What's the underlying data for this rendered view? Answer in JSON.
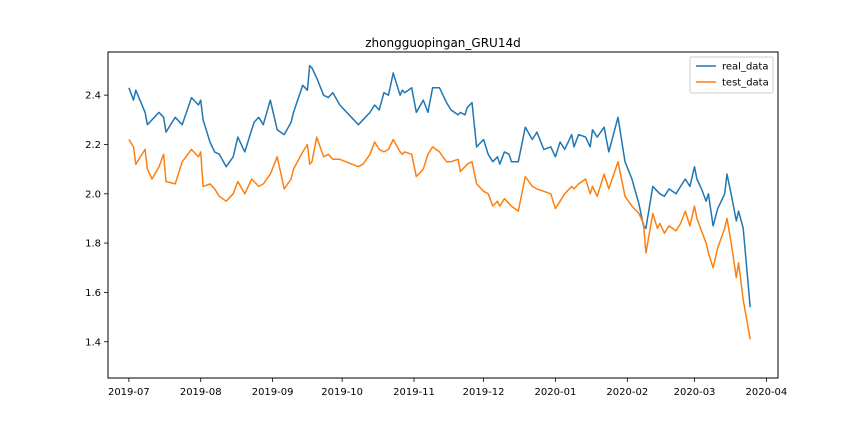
{
  "chart_data": {
    "type": "line",
    "title": "zhongguopingan_GRU14d",
    "xlabel": "",
    "ylabel": "",
    "xlim": [
      "2019-06-22",
      "2020-04-06"
    ],
    "ylim": [
      1.253,
      2.575
    ],
    "x_ticks": [
      "2019-07",
      "2019-08",
      "2019-09",
      "2019-10",
      "2019-11",
      "2019-12",
      "2020-01",
      "2020-02",
      "2020-03",
      "2020-04"
    ],
    "y_ticks": [
      "1.4",
      "1.6",
      "1.8",
      "2.0",
      "2.2",
      "2.4"
    ],
    "grid": false,
    "legend_position": "top-right",
    "series": [
      {
        "name": "real_data",
        "color": "#1f77b4",
        "x": [
          "2019-07-01",
          "2019-07-03",
          "2019-07-04",
          "2019-07-08",
          "2019-07-09",
          "2019-07-11",
          "2019-07-14",
          "2019-07-16",
          "2019-07-17",
          "2019-07-21",
          "2019-07-24",
          "2019-07-28",
          "2019-07-31",
          "2019-08-01",
          "2019-08-02",
          "2019-08-05",
          "2019-08-07",
          "2019-08-09",
          "2019-08-12",
          "2019-08-15",
          "2019-08-17",
          "2019-08-20",
          "2019-08-23",
          "2019-08-24",
          "2019-08-26",
          "2019-08-28",
          "2019-08-31",
          "2019-09-03",
          "2019-09-06",
          "2019-09-09",
          "2019-09-10",
          "2019-09-14",
          "2019-09-16",
          "2019-09-17",
          "2019-09-18",
          "2019-09-20",
          "2019-09-23",
          "2019-09-25",
          "2019-09-27",
          "2019-09-30",
          "2019-10-08",
          "2019-10-10",
          "2019-10-13",
          "2019-10-15",
          "2019-10-17",
          "2019-10-19",
          "2019-10-21",
          "2019-10-23",
          "2019-10-26",
          "2019-10-27",
          "2019-10-28",
          "2019-10-31",
          "2019-11-02",
          "2019-11-05",
          "2019-11-07",
          "2019-11-09",
          "2019-11-12",
          "2019-11-15",
          "2019-11-17",
          "2019-11-20",
          "2019-11-21",
          "2019-11-23",
          "2019-11-24",
          "2019-11-26",
          "2019-11-28",
          "2019-12-01",
          "2019-12-03",
          "2019-12-05",
          "2019-12-07",
          "2019-12-08",
          "2019-12-10",
          "2019-12-12",
          "2019-12-13",
          "2019-12-16",
          "2019-12-19",
          "2019-12-22",
          "2019-12-24",
          "2019-12-27",
          "2019-12-30",
          "2020-01-01",
          "2020-01-03",
          "2020-01-05",
          "2020-01-08",
          "2020-01-09",
          "2020-01-11",
          "2020-01-14",
          "2020-01-16",
          "2020-01-17",
          "2020-01-19",
          "2020-01-22",
          "2020-01-24",
          "2020-01-28",
          "2020-01-31",
          "2020-02-03",
          "2020-02-06",
          "2020-02-08",
          "2020-02-09",
          "2020-02-12",
          "2020-02-14",
          "2020-02-15",
          "2020-02-17",
          "2020-02-19",
          "2020-02-22",
          "2020-02-24",
          "2020-02-26",
          "2020-02-28",
          "2020-03-01",
          "2020-03-02",
          "2020-03-04",
          "2020-03-06",
          "2020-03-07",
          "2020-03-09",
          "2020-03-11",
          "2020-03-14",
          "2020-03-15",
          "2020-03-17",
          "2020-03-19",
          "2020-03-20",
          "2020-03-22",
          "2020-03-25"
        ],
        "y": [
          2.43,
          2.38,
          2.42,
          2.33,
          2.28,
          2.3,
          2.33,
          2.31,
          2.25,
          2.31,
          2.28,
          2.39,
          2.36,
          2.38,
          2.3,
          2.21,
          2.17,
          2.16,
          2.11,
          2.15,
          2.23,
          2.17,
          2.26,
          2.29,
          2.31,
          2.28,
          2.38,
          2.26,
          2.24,
          2.29,
          2.33,
          2.44,
          2.42,
          2.52,
          2.51,
          2.47,
          2.4,
          2.39,
          2.41,
          2.36,
          2.28,
          2.3,
          2.33,
          2.36,
          2.34,
          2.41,
          2.4,
          2.49,
          2.4,
          2.42,
          2.41,
          2.43,
          2.33,
          2.38,
          2.33,
          2.43,
          2.43,
          2.37,
          2.34,
          2.32,
          2.33,
          2.32,
          2.35,
          2.37,
          2.19,
          2.22,
          2.16,
          2.13,
          2.15,
          2.12,
          2.17,
          2.16,
          2.13,
          2.13,
          2.27,
          2.22,
          2.25,
          2.18,
          2.19,
          2.15,
          2.21,
          2.18,
          2.24,
          2.19,
          2.24,
          2.23,
          2.19,
          2.26,
          2.23,
          2.27,
          2.17,
          2.31,
          2.13,
          2.06,
          1.96,
          1.87,
          1.86,
          2.03,
          2.01,
          2.0,
          1.99,
          2.02,
          2.0,
          2.03,
          2.06,
          2.03,
          2.11,
          2.06,
          2.02,
          1.97,
          2.0,
          1.87,
          1.94,
          2.0,
          2.08,
          1.99,
          1.89,
          1.93,
          1.86,
          1.54
        ]
      },
      {
        "name": "test_data",
        "color": "#ff7f0e",
        "x": [
          "2019-07-01",
          "2019-07-03",
          "2019-07-04",
          "2019-07-08",
          "2019-07-09",
          "2019-07-11",
          "2019-07-14",
          "2019-07-16",
          "2019-07-17",
          "2019-07-21",
          "2019-07-24",
          "2019-07-28",
          "2019-07-31",
          "2019-08-01",
          "2019-08-02",
          "2019-08-05",
          "2019-08-07",
          "2019-08-09",
          "2019-08-12",
          "2019-08-15",
          "2019-08-17",
          "2019-08-20",
          "2019-08-23",
          "2019-08-24",
          "2019-08-26",
          "2019-08-28",
          "2019-08-31",
          "2019-09-03",
          "2019-09-06",
          "2019-09-09",
          "2019-09-10",
          "2019-09-14",
          "2019-09-16",
          "2019-09-17",
          "2019-09-18",
          "2019-09-20",
          "2019-09-23",
          "2019-09-25",
          "2019-09-27",
          "2019-09-30",
          "2019-10-08",
          "2019-10-10",
          "2019-10-13",
          "2019-10-15",
          "2019-10-17",
          "2019-10-19",
          "2019-10-21",
          "2019-10-23",
          "2019-10-26",
          "2019-10-27",
          "2019-10-28",
          "2019-10-31",
          "2019-11-02",
          "2019-11-05",
          "2019-11-07",
          "2019-11-09",
          "2019-11-12",
          "2019-11-15",
          "2019-11-17",
          "2019-11-20",
          "2019-11-21",
          "2019-11-23",
          "2019-11-24",
          "2019-11-26",
          "2019-11-28",
          "2019-12-01",
          "2019-12-03",
          "2019-12-05",
          "2019-12-07",
          "2019-12-08",
          "2019-12-10",
          "2019-12-12",
          "2019-12-13",
          "2019-12-16",
          "2019-12-19",
          "2019-12-22",
          "2019-12-24",
          "2019-12-27",
          "2019-12-30",
          "2020-01-01",
          "2020-01-03",
          "2020-01-05",
          "2020-01-08",
          "2020-01-09",
          "2020-01-11",
          "2020-01-14",
          "2020-01-16",
          "2020-01-17",
          "2020-01-19",
          "2020-01-22",
          "2020-01-24",
          "2020-01-28",
          "2020-01-31",
          "2020-02-03",
          "2020-02-06",
          "2020-02-08",
          "2020-02-09",
          "2020-02-12",
          "2020-02-14",
          "2020-02-15",
          "2020-02-17",
          "2020-02-19",
          "2020-02-22",
          "2020-02-24",
          "2020-02-26",
          "2020-02-28",
          "2020-03-01",
          "2020-03-02",
          "2020-03-04",
          "2020-03-06",
          "2020-03-07",
          "2020-03-09",
          "2020-03-11",
          "2020-03-14",
          "2020-03-15",
          "2020-03-17",
          "2020-03-19",
          "2020-03-20",
          "2020-03-22",
          "2020-03-25"
        ],
        "y": [
          2.22,
          2.19,
          2.12,
          2.18,
          2.1,
          2.06,
          2.11,
          2.16,
          2.05,
          2.04,
          2.13,
          2.18,
          2.15,
          2.17,
          2.03,
          2.04,
          2.02,
          1.99,
          1.97,
          2.0,
          2.05,
          2.0,
          2.06,
          2.05,
          2.03,
          2.04,
          2.08,
          2.15,
          2.02,
          2.06,
          2.1,
          2.17,
          2.2,
          2.12,
          2.13,
          2.23,
          2.15,
          2.16,
          2.14,
          2.14,
          2.11,
          2.12,
          2.16,
          2.21,
          2.18,
          2.17,
          2.18,
          2.22,
          2.17,
          2.16,
          2.17,
          2.16,
          2.07,
          2.1,
          2.16,
          2.19,
          2.17,
          2.13,
          2.13,
          2.14,
          2.09,
          2.11,
          2.12,
          2.13,
          2.04,
          2.01,
          2.0,
          1.95,
          1.97,
          1.95,
          1.98,
          1.96,
          1.95,
          1.93,
          2.07,
          2.03,
          2.02,
          2.01,
          2.0,
          1.94,
          1.97,
          2.0,
          2.03,
          2.02,
          2.04,
          2.06,
          2.0,
          2.03,
          1.99,
          2.08,
          2.02,
          2.13,
          1.99,
          1.95,
          1.92,
          1.88,
          1.76,
          1.92,
          1.86,
          1.88,
          1.84,
          1.87,
          1.85,
          1.88,
          1.93,
          1.87,
          1.95,
          1.9,
          1.85,
          1.8,
          1.76,
          1.7,
          1.78,
          1.86,
          1.9,
          1.79,
          1.66,
          1.72,
          1.57,
          1.41
        ]
      }
    ]
  }
}
